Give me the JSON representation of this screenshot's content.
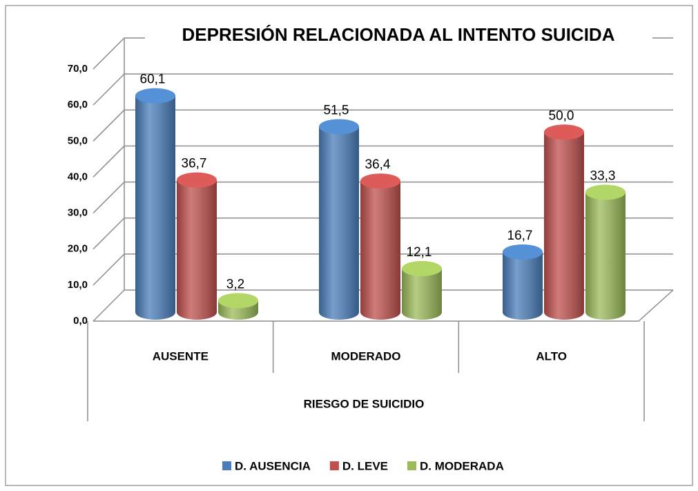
{
  "chart_data": {
    "type": "bar3d",
    "title": "DEPRESIÓN RELACIONADA AL INTENTO SUICIDA",
    "x_label": "RIESGO DE SUICIDIO",
    "categories": [
      "AUSENTE",
      "MODERADO",
      "ALTO"
    ],
    "series": [
      {
        "name": "D. AUSENCIA",
        "color": "#4a7ebb",
        "values": [
          60.1,
          51.5,
          16.7
        ],
        "value_labels": [
          "60,1",
          "51,5",
          "16,7"
        ]
      },
      {
        "name": "D. LEVE",
        "color": "#c0504d",
        "values": [
          36.7,
          36.4,
          50.0
        ],
        "value_labels": [
          "36,7",
          "36,4",
          "50,0"
        ]
      },
      {
        "name": "D. MODERADA",
        "color": "#9bbb59",
        "values": [
          3.2,
          12.1,
          33.3
        ],
        "value_labels": [
          "3,2",
          "12,1",
          "33,3"
        ]
      }
    ],
    "ylim": [
      0,
      70
    ],
    "yticks": [
      {
        "value": 0,
        "label": "0,0"
      },
      {
        "value": 10,
        "label": "10,0"
      },
      {
        "value": 20,
        "label": "20,0"
      },
      {
        "value": 30,
        "label": "30,0"
      },
      {
        "value": 40,
        "label": "40,0"
      },
      {
        "value": 50,
        "label": "50,0"
      },
      {
        "value": 60,
        "label": "60,0"
      },
      {
        "value": 70,
        "label": "70,0"
      }
    ],
    "grid": true,
    "legend": "bottom"
  }
}
